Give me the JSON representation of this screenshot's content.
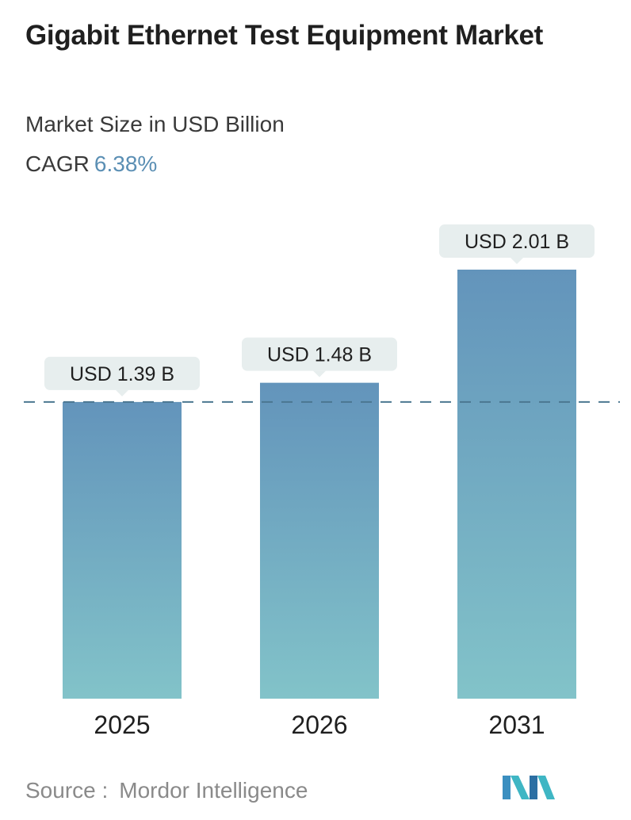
{
  "header": {
    "title": "Gigabit Ethernet Test Equipment Market",
    "subtitle": "Market Size in USD Billion",
    "cagr_label": "CAGR",
    "cagr_value": "6.38%"
  },
  "chart_data": {
    "type": "bar",
    "title": "Gigabit Ethernet Test Equipment Market",
    "subtitle": "Market Size in USD Billion",
    "categories": [
      "2025",
      "2026",
      "2031"
    ],
    "values": [
      1.39,
      1.48,
      2.01
    ],
    "data_labels": [
      "USD 1.39 B",
      "USD 1.48 B",
      "USD 2.01 B"
    ],
    "ylim": [
      0,
      2.01
    ],
    "reference_line": 1.39,
    "grid": false,
    "legend": "none",
    "colors": {
      "bar_top": "#6394bb",
      "bar_bottom": "#82c3c9",
      "label_bg": "#e7eeee",
      "reference_line": "#4b7791"
    }
  },
  "footer": {
    "source_label": "Source :",
    "source_value": "Mordor Intelligence",
    "logo_icon": "mordor-intelligence-logo-icon"
  }
}
